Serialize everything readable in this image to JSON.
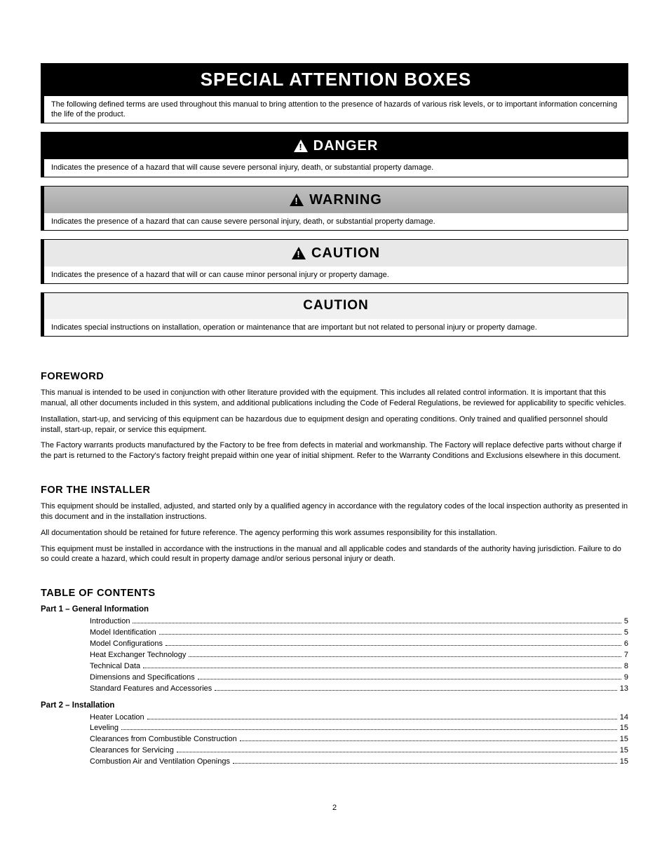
{
  "colors": {
    "page_background": "#ffffff",
    "text": "#000000",
    "header_black_bg": "#000000",
    "header_black_fg": "#ffffff",
    "header_warning_bg": "#b0b0b0",
    "header_caution1_bg": "#e8e8e8",
    "header_caution2_bg": "#f0f0f0",
    "border": "#000000"
  },
  "typography": {
    "body_font": "Verdana, Arial, sans-serif",
    "header_font": "Arial, sans-serif",
    "body_size_pt": 8,
    "heading_size_pt": 11,
    "box_title_size_pt": 15,
    "box_main_title_pt": 20
  },
  "attention_boxes": {
    "title": "SPECIAL ATTENTION BOXES",
    "title_body": "The following defined terms are used throughout this manual to bring attention to the presence of hazards of various risk levels, or to important information concerning the life of the product.",
    "danger": {
      "label": "DANGER",
      "body": "Indicates the presence of a hazard that will cause severe personal injury, death, or substantial property damage."
    },
    "warning": {
      "label": "WARNING",
      "body": "Indicates the presence of a hazard that can cause severe personal injury, death, or substantial property damage."
    },
    "caution1": {
      "label": "CAUTION",
      "body": "Indicates the presence of a hazard that will or can cause minor personal injury or property damage."
    },
    "caution2": {
      "label": "CAUTION",
      "body": "Indicates special instructions on installation, operation or maintenance that are important but not related to personal injury or property damage."
    }
  },
  "foreword": {
    "heading": "FOREWORD",
    "p1": "This manual is intended to be used in conjunction with other literature provided with the equipment. This includes all related control information. It is important that this manual, all other documents included in this system, and additional publications including the Code of Federal Regulations, be reviewed for applicability to specific vehicles.",
    "p2": "Installation, start-up, and servicing of this equipment can be hazardous due to equipment design and operating conditions. Only trained and qualified personnel should install, start-up, repair, or service this equipment.",
    "p3": "The Factory warrants products manufactured by the Factory to be free from defects in material and workmanship. The Factory will replace defective parts without charge if the part is returned to the Factory's factory freight prepaid within one year of initial shipment. Refer to the Warranty Conditions and Exclusions elsewhere in this document."
  },
  "installer": {
    "heading": "FOR THE INSTALLER",
    "p1": "This equipment should be installed, adjusted, and started only by a qualified agency in accordance with the regulatory codes of the local inspection authority as presented in this document and in the installation instructions.",
    "p2": "All documentation should be retained for future reference. The agency performing this work assumes responsibility for this installation.",
    "p3": "This equipment must be installed in accordance with the instructions in the manual and all applicable codes and standards of the authority having jurisdiction. Failure to do so could create a hazard, which could result in property damage and/or serious personal injury or death."
  },
  "toc": {
    "heading": "TABLE OF CONTENTS",
    "parts": [
      {
        "label": "Part 1 – General Information",
        "items": [
          {
            "title": "Introduction",
            "page": "5"
          },
          {
            "title": "Model Identification",
            "page": "5"
          },
          {
            "title": "Model Configurations",
            "page": "6"
          },
          {
            "title": "Heat Exchanger Technology",
            "page": "7"
          },
          {
            "title": "Technical Data",
            "page": "8"
          },
          {
            "title": "Dimensions and Specifications",
            "page": "9"
          },
          {
            "title": "Standard Features and Accessories",
            "page": "13"
          }
        ]
      },
      {
        "label": "Part 2 – Installation",
        "items": [
          {
            "title": "Heater Location",
            "page": "14"
          },
          {
            "title": "Leveling",
            "page": "15"
          },
          {
            "title": "Clearances from Combustible Construction",
            "page": "15"
          },
          {
            "title": "Clearances for Servicing",
            "page": "15"
          },
          {
            "title": "Combustion Air and Ventilation Openings",
            "page": "15"
          }
        ]
      }
    ]
  },
  "page_number": "2"
}
